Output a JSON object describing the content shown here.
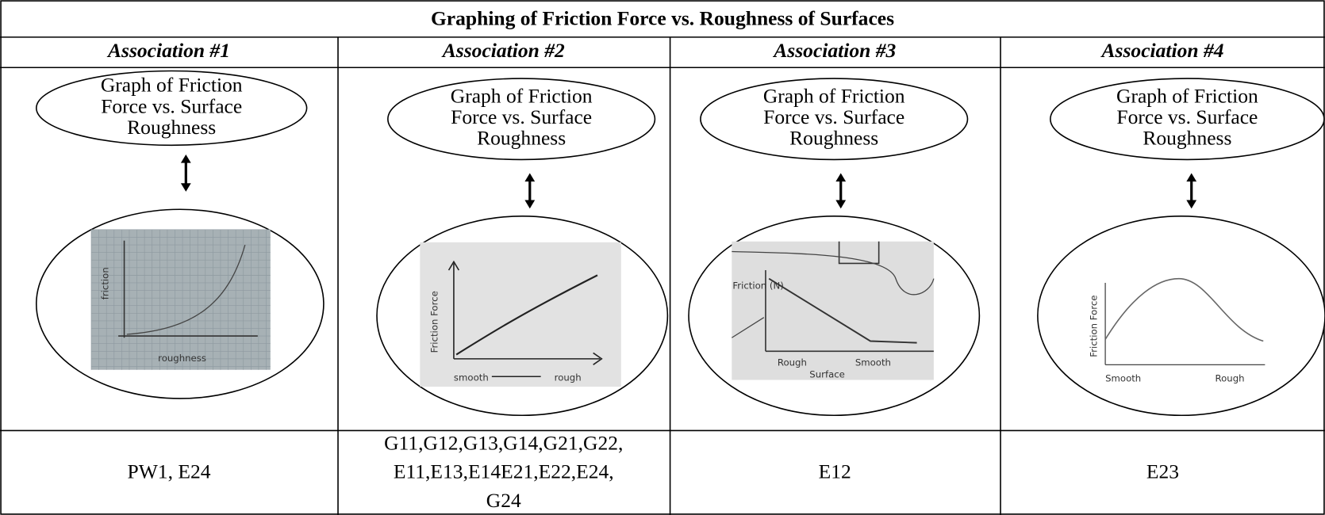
{
  "header": {
    "title": "Graphing of Friction Force vs.  Roughness of Surfaces"
  },
  "columns": [
    {
      "header": "Association #1",
      "concept": [
        "Graph of Friction",
        "Force vs. Surface",
        "Roughness"
      ],
      "sketch": {
        "y_label": "friction",
        "x_labels": [
          "roughness"
        ]
      },
      "students": [
        "PW1, E24"
      ]
    },
    {
      "header": "Association #2",
      "concept": [
        "Graph of Friction",
        "Force vs. Surface",
        "Roughness"
      ],
      "sketch": {
        "y_label": "Friction Force",
        "x_labels": [
          "smooth",
          "rough"
        ]
      },
      "students": [
        "G11,G12,G13,G14,G21,G22,",
        "E11,E13,E14E21,E22,E24,",
        "G24"
      ]
    },
    {
      "header": "Association #3",
      "concept": [
        "Graph of Friction",
        "Force vs. Surface",
        "Roughness"
      ],
      "sketch": {
        "y_label": "Friction (N)",
        "x_labels": [
          "Rough",
          "Smooth",
          "Surface"
        ]
      },
      "students": [
        "E12"
      ]
    },
    {
      "header": "Association #4",
      "concept": [
        "Graph of Friction",
        "Force vs. Surface",
        "Roughness"
      ],
      "sketch": {
        "y_label": "Friction Force",
        "x_labels": [
          "Smooth",
          "Rough"
        ]
      },
      "students": [
        "E23"
      ]
    }
  ]
}
